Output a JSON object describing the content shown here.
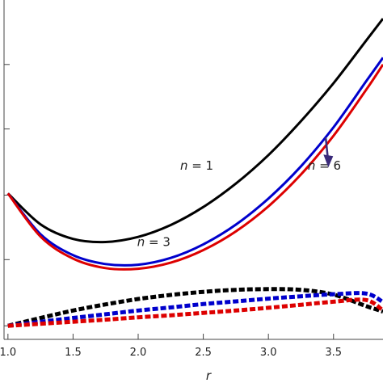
{
  "chart_data": {
    "type": "line",
    "xlabel": "r",
    "ylabel": "",
    "xlim": [
      0.97,
      3.88
    ],
    "ylim": [
      0,
      1
    ],
    "x_ticks": [
      "1.0",
      "1.5",
      "2.0",
      "2.5",
      "3.0",
      "3.5"
    ],
    "x_tick_values": [
      1.0,
      1.5,
      2.0,
      2.5,
      3.0,
      3.5
    ],
    "y_tick_values": [
      0.04,
      0.235,
      0.425,
      0.62,
      0.81
    ],
    "grid": false,
    "series": [
      {
        "color": "#000000",
        "style": "solid",
        "x": [
          1.0,
          1.25,
          1.5,
          1.75,
          2.0,
          2.25,
          2.5,
          2.75,
          3.0,
          3.25,
          3.5,
          3.75,
          3.88
        ],
        "y": [
          0.43,
          0.339,
          0.296,
          0.287,
          0.302,
          0.337,
          0.39,
          0.459,
          0.543,
          0.643,
          0.755,
          0.88,
          0.945
        ]
      },
      {
        "color": "#0000cc",
        "style": "solid",
        "x": [
          1.0,
          1.25,
          1.5,
          1.75,
          2.0,
          2.25,
          2.5,
          2.75,
          3.0,
          3.25,
          3.5,
          3.75,
          3.88
        ],
        "y": [
          0.43,
          0.31,
          0.248,
          0.222,
          0.22,
          0.24,
          0.28,
          0.338,
          0.415,
          0.51,
          0.625,
          0.76,
          0.83
        ]
      },
      {
        "color": "#dd0000",
        "style": "solid",
        "x": [
          1.0,
          1.25,
          1.5,
          1.75,
          2.0,
          2.25,
          2.5,
          2.75,
          3.0,
          3.25,
          3.5,
          3.75,
          3.88
        ],
        "y": [
          0.43,
          0.303,
          0.238,
          0.21,
          0.208,
          0.226,
          0.263,
          0.318,
          0.392,
          0.486,
          0.6,
          0.735,
          0.81
        ]
      },
      {
        "color": "#000000",
        "style": "dashed",
        "x": [
          1.0,
          1.25,
          1.5,
          1.75,
          2.0,
          2.25,
          2.5,
          2.75,
          3.0,
          3.25,
          3.5,
          3.75,
          3.88
        ],
        "y": [
          0.04,
          0.063,
          0.085,
          0.103,
          0.119,
          0.131,
          0.14,
          0.146,
          0.148,
          0.146,
          0.132,
          0.098,
          0.082
        ]
      },
      {
        "color": "#0000cc",
        "style": "dashed",
        "x": [
          1.0,
          1.25,
          1.5,
          1.75,
          2.0,
          2.25,
          2.5,
          2.75,
          3.0,
          3.25,
          3.5,
          3.75,
          3.88
        ],
        "y": [
          0.04,
          0.052,
          0.063,
          0.074,
          0.085,
          0.094,
          0.104,
          0.112,
          0.12,
          0.127,
          0.133,
          0.135,
          0.11
        ]
      },
      {
        "color": "#dd0000",
        "style": "dashed",
        "x": [
          1.0,
          1.25,
          1.5,
          1.75,
          2.0,
          2.25,
          2.5,
          2.75,
          3.0,
          3.25,
          3.5,
          3.75,
          3.88
        ],
        "y": [
          0.04,
          0.046,
          0.052,
          0.058,
          0.065,
          0.071,
          0.078,
          0.085,
          0.093,
          0.102,
          0.111,
          0.116,
          0.085
        ]
      }
    ],
    "annotations": [
      {
        "var": "n",
        "rest": " = 1",
        "x": 2.45,
        "y": 0.5
      },
      {
        "var": "n",
        "rest": " = 3",
        "x": 2.12,
        "y": 0.275
      },
      {
        "var": "n",
        "rest": " = 6",
        "x": 3.43,
        "y": 0.5
      }
    ],
    "arrow": {
      "from": [
        3.44,
        0.595
      ],
      "to": [
        3.46,
        0.535
      ],
      "color": "#3a2a7a"
    }
  }
}
